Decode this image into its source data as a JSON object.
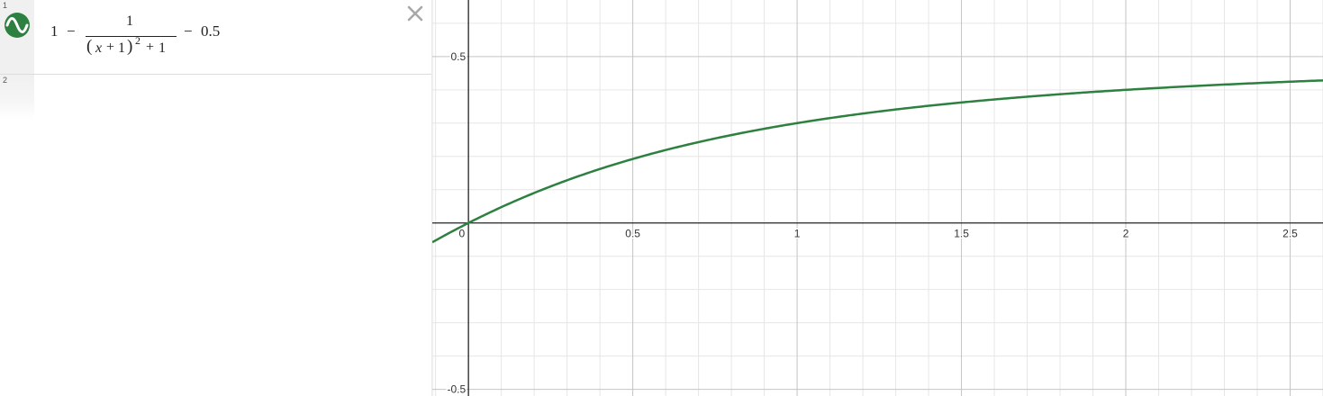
{
  "expressions": [
    {
      "index": "1",
      "icon": "sine-wave-icon",
      "color": "#2d8040",
      "latex_parts": {
        "one": "1",
        "minus1": "−",
        "numerator": "1",
        "lparen": "(",
        "x": "x",
        "plus": "+",
        "inner_one": "1",
        "rparen": ")",
        "exponent": "2",
        "plus2": "+",
        "const_one": "1",
        "minus2": "−",
        "constant": "0.5"
      }
    },
    {
      "index": "2"
    }
  ],
  "close_icon": "close-icon",
  "graph": {
    "x_tick_labels": [
      "0",
      "0.5",
      "1",
      "1.5",
      "2",
      "2.5"
    ],
    "x_ticks": [
      0,
      0.5,
      1,
      1.5,
      2,
      2.5
    ],
    "y_tick_labels": [
      "0.5",
      "-0.5"
    ],
    "y_ticks": [
      0.5,
      -0.5
    ],
    "curve_color": "#2d8040",
    "axis_color": "#222222"
  },
  "chart_data": {
    "type": "line",
    "title": "",
    "xlabel": "",
    "ylabel": "",
    "xlim": [
      -0.11,
      2.6
    ],
    "ylim": [
      -0.52,
      0.67
    ],
    "grid": true,
    "series": [
      {
        "function": "1 - 1/((x+1)^2+1) - 0.5",
        "x": [
          -0.1,
          0,
          0.25,
          0.5,
          0.75,
          1,
          1.25,
          1.5,
          1.75,
          2,
          2.25,
          2.5
        ],
        "y": [
          -0.052,
          0,
          0.11,
          0.192,
          0.254,
          0.3,
          0.335,
          0.362,
          0.383,
          0.4,
          0.414,
          0.425
        ]
      }
    ]
  }
}
